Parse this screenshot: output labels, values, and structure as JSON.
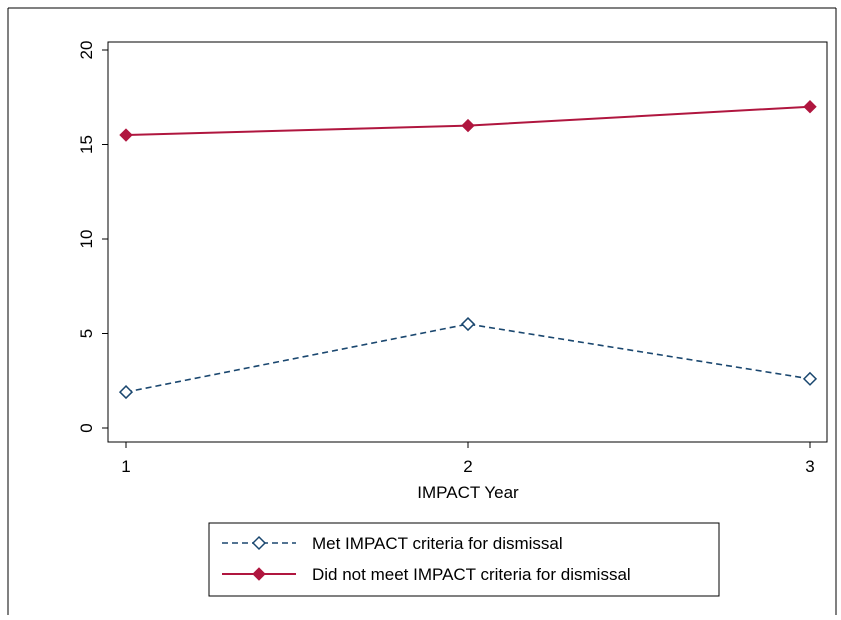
{
  "chart_data": {
    "type": "line",
    "title": "",
    "xlabel": "IMPACT Year",
    "ylabel": "",
    "x": [
      1,
      2,
      3
    ],
    "x_ticks": [
      "1",
      "2",
      "3"
    ],
    "y_ticks": [
      "0",
      "5",
      "10",
      "15",
      "20"
    ],
    "xlim": [
      1,
      3
    ],
    "ylim": [
      0,
      20
    ],
    "grid": false,
    "legend_position": "bottom",
    "series": [
      {
        "name": "Met IMPACT criteria for dismissal",
        "values": [
          1.9,
          5.5,
          2.6
        ],
        "color": "#1a476f",
        "line_style": "dashed",
        "marker": "hollow-diamond"
      },
      {
        "name": "Did not meet IMPACT criteria for dismissal",
        "values": [
          15.5,
          16.0,
          17.0
        ],
        "color": "#b0163f",
        "line_style": "solid",
        "marker": "filled-diamond"
      }
    ]
  }
}
